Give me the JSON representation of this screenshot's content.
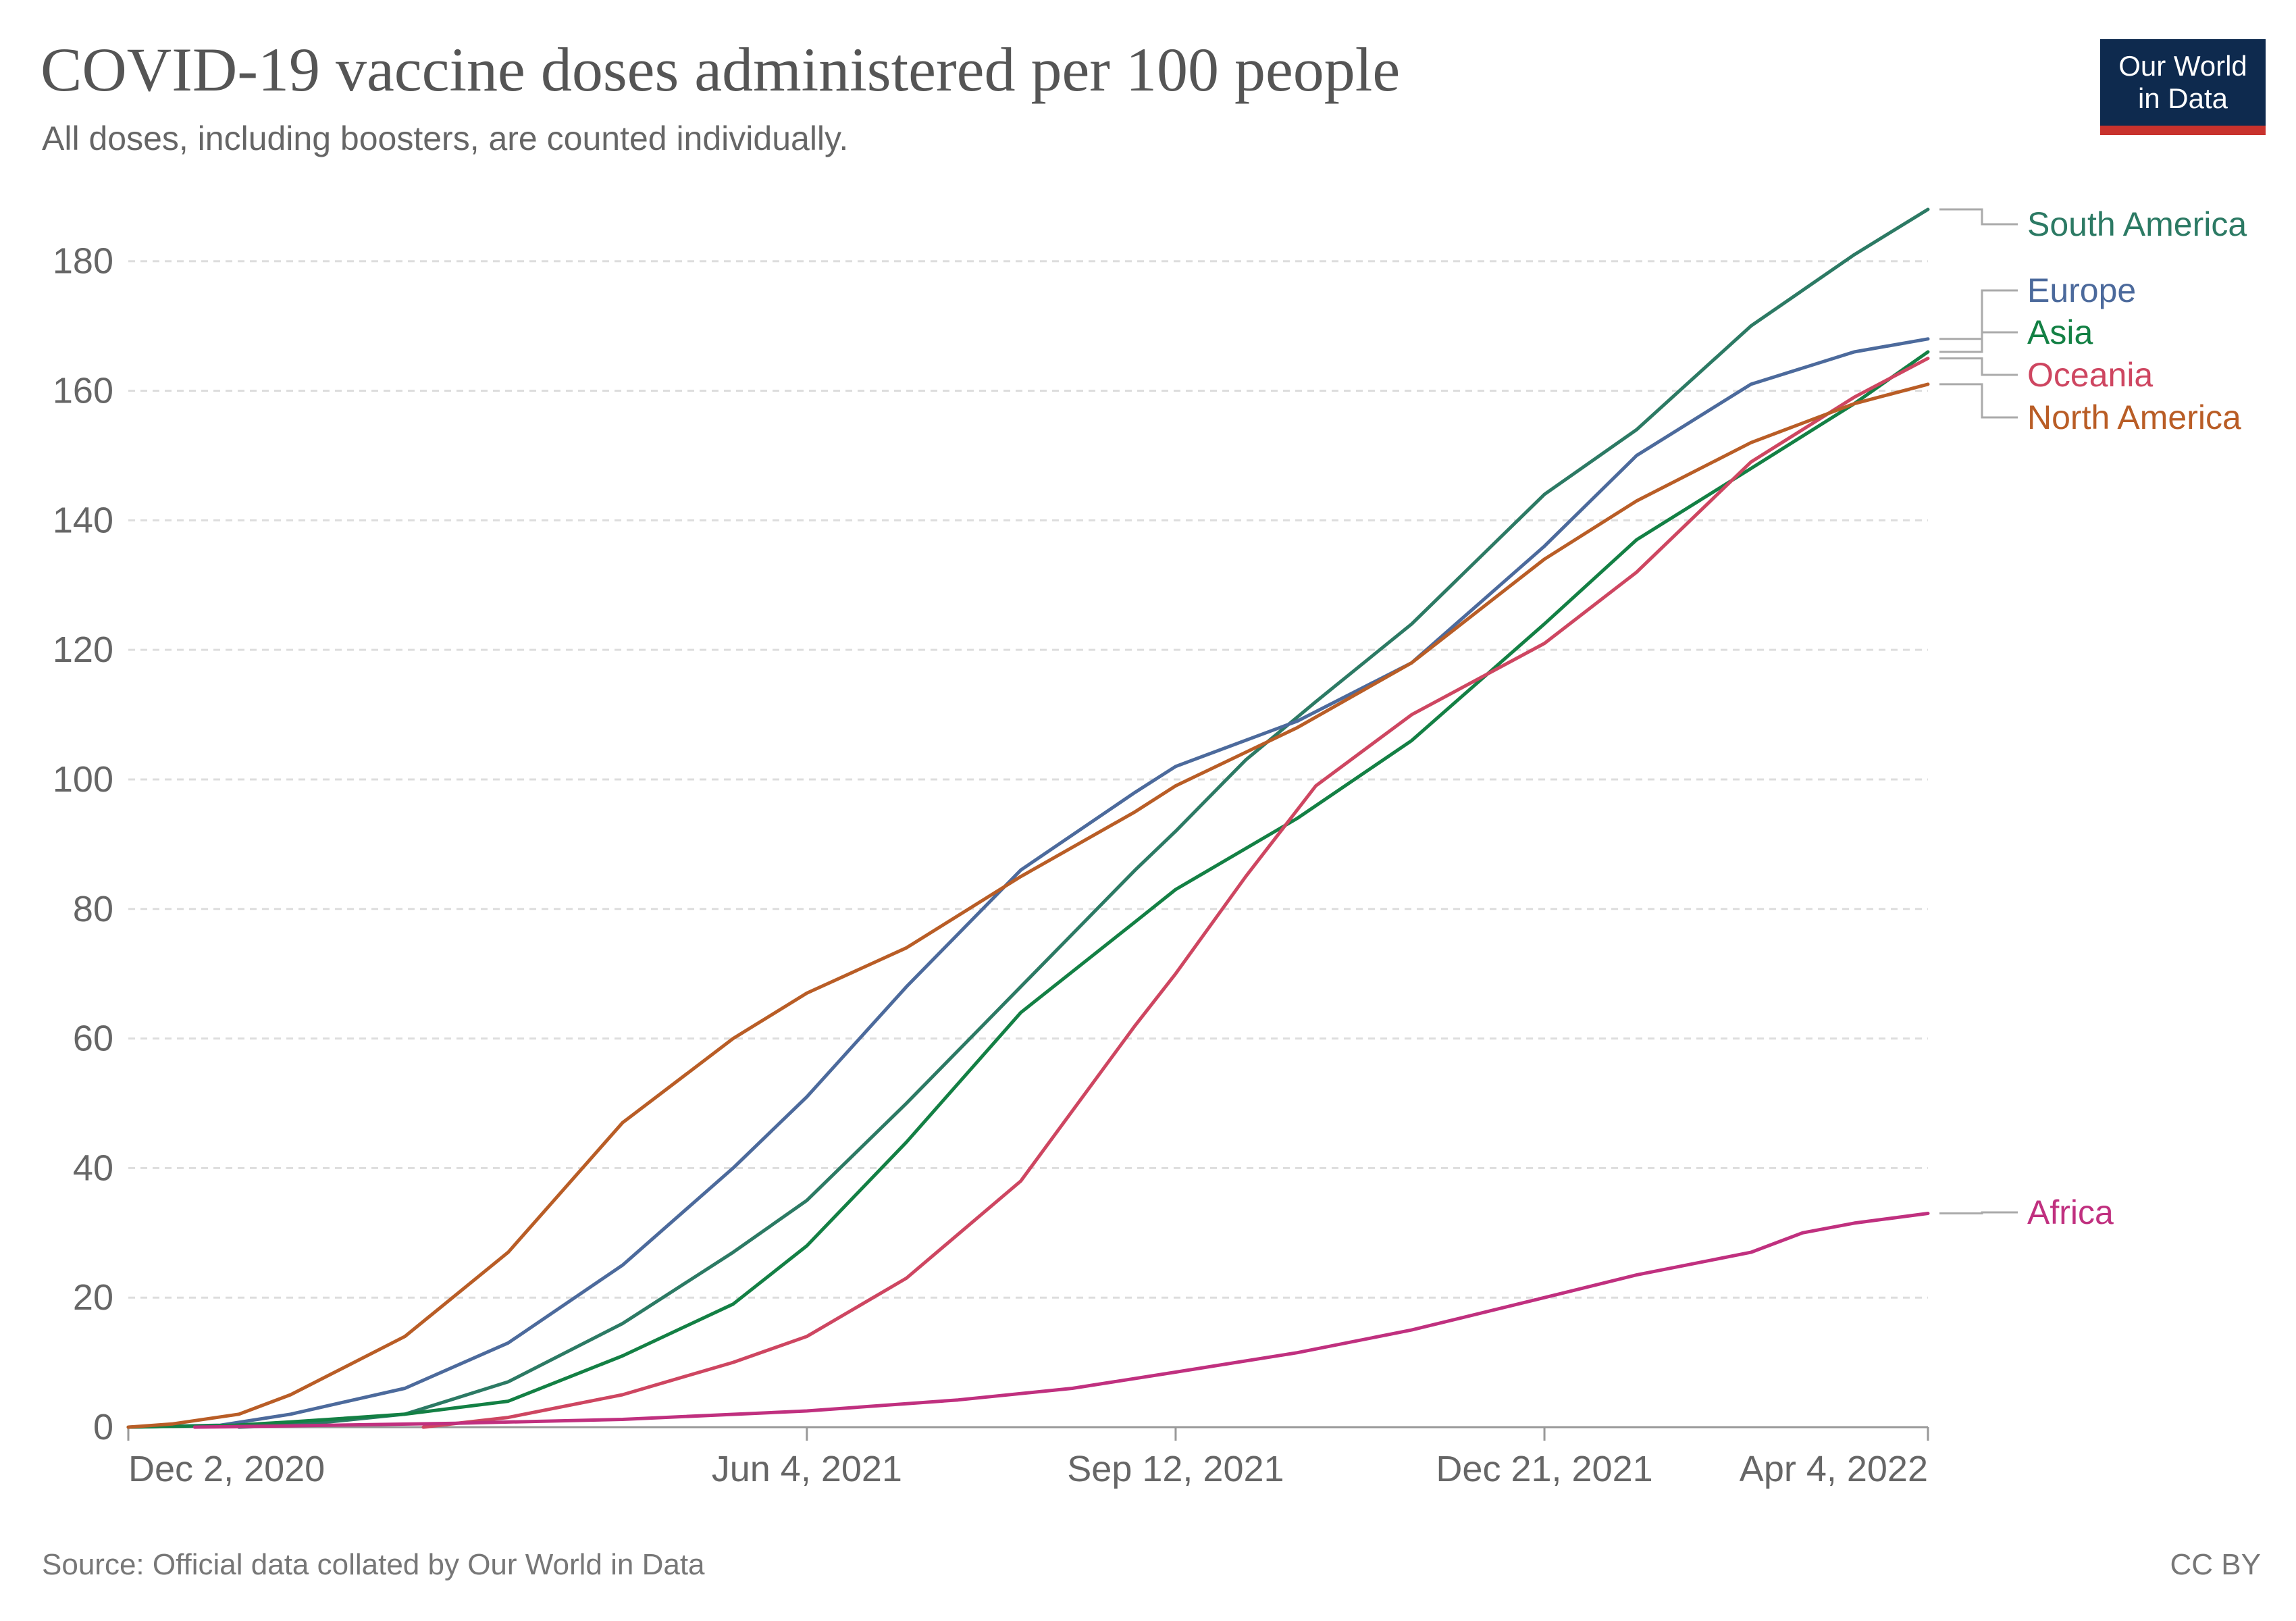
{
  "header": {
    "title": "COVID-19 vaccine doses administered per 100 people",
    "subtitle": "All doses, including boosters, are counted individually."
  },
  "logo": {
    "line1": "Our World",
    "line2": "in Data"
  },
  "footer": {
    "source": "Source: Official data collated by Our World in Data",
    "license": "CC BY"
  },
  "chart_data": {
    "type": "line",
    "title": "COVID-19 vaccine doses administered per 100 people",
    "subtitle": "All doses, including boosters, are counted individually.",
    "xlabel": "",
    "ylabel": "",
    "x_axis": {
      "type": "date",
      "range": [
        "2020-12-02",
        "2022-04-04"
      ],
      "ticks": [
        {
          "date": "2020-12-02",
          "label": "Dec 2, 2020"
        },
        {
          "date": "2021-06-04",
          "label": "Jun 4, 2021"
        },
        {
          "date": "2021-09-12",
          "label": "Sep 12, 2021"
        },
        {
          "date": "2021-12-21",
          "label": "Dec 21, 2021"
        },
        {
          "date": "2022-04-04",
          "label": "Apr 4, 2022"
        }
      ]
    },
    "y_axis": {
      "range": [
        0,
        188
      ],
      "ticks": [
        0,
        20,
        40,
        60,
        80,
        100,
        120,
        140,
        160,
        180
      ],
      "grid": true
    },
    "legend": "right-side labels at line ends",
    "series": [
      {
        "name": "South America",
        "color": "#2c7a64",
        "points": [
          {
            "x": "2021-01-01",
            "y": 0
          },
          {
            "x": "2021-01-20",
            "y": 0.5
          },
          {
            "x": "2021-02-15",
            "y": 2
          },
          {
            "x": "2021-03-15",
            "y": 7
          },
          {
            "x": "2021-04-15",
            "y": 16
          },
          {
            "x": "2021-05-15",
            "y": 27
          },
          {
            "x": "2021-06-04",
            "y": 35
          },
          {
            "x": "2021-07-01",
            "y": 50
          },
          {
            "x": "2021-08-01",
            "y": 68
          },
          {
            "x": "2021-09-01",
            "y": 86
          },
          {
            "x": "2021-09-12",
            "y": 92
          },
          {
            "x": "2021-10-01",
            "y": 103
          },
          {
            "x": "2021-10-20",
            "y": 112
          },
          {
            "x": "2021-11-15",
            "y": 124
          },
          {
            "x": "2021-12-21",
            "y": 144
          },
          {
            "x": "2022-01-15",
            "y": 154
          },
          {
            "x": "2022-02-15",
            "y": 170
          },
          {
            "x": "2022-03-15",
            "y": 181
          },
          {
            "x": "2022-04-04",
            "y": 188
          }
        ]
      },
      {
        "name": "Europe",
        "color": "#4c6a9c",
        "points": [
          {
            "x": "2020-12-02",
            "y": 0
          },
          {
            "x": "2020-12-27",
            "y": 0.3
          },
          {
            "x": "2021-01-15",
            "y": 2
          },
          {
            "x": "2021-02-15",
            "y": 6
          },
          {
            "x": "2021-03-15",
            "y": 13
          },
          {
            "x": "2021-04-15",
            "y": 25
          },
          {
            "x": "2021-05-15",
            "y": 40
          },
          {
            "x": "2021-06-04",
            "y": 51
          },
          {
            "x": "2021-07-01",
            "y": 68
          },
          {
            "x": "2021-08-01",
            "y": 86
          },
          {
            "x": "2021-09-01",
            "y": 98
          },
          {
            "x": "2021-09-12",
            "y": 102
          },
          {
            "x": "2021-10-15",
            "y": 109
          },
          {
            "x": "2021-11-15",
            "y": 118
          },
          {
            "x": "2021-12-21",
            "y": 136
          },
          {
            "x": "2022-01-15",
            "y": 150
          },
          {
            "x": "2022-02-15",
            "y": 161
          },
          {
            "x": "2022-03-15",
            "y": 166
          },
          {
            "x": "2022-04-04",
            "y": 168
          }
        ]
      },
      {
        "name": "Asia",
        "color": "#138044",
        "points": [
          {
            "x": "2020-12-02",
            "y": 0
          },
          {
            "x": "2020-12-31",
            "y": 0.3
          },
          {
            "x": "2021-01-15",
            "y": 0.8
          },
          {
            "x": "2021-02-15",
            "y": 2
          },
          {
            "x": "2021-03-15",
            "y": 4
          },
          {
            "x": "2021-04-15",
            "y": 11
          },
          {
            "x": "2021-05-15",
            "y": 19
          },
          {
            "x": "2021-06-04",
            "y": 28
          },
          {
            "x": "2021-07-01",
            "y": 44
          },
          {
            "x": "2021-08-01",
            "y": 64
          },
          {
            "x": "2021-09-01",
            "y": 78
          },
          {
            "x": "2021-09-12",
            "y": 83
          },
          {
            "x": "2021-10-15",
            "y": 94
          },
          {
            "x": "2021-11-15",
            "y": 106
          },
          {
            "x": "2021-12-21",
            "y": 124
          },
          {
            "x": "2022-01-15",
            "y": 137
          },
          {
            "x": "2022-02-15",
            "y": 148
          },
          {
            "x": "2022-03-15",
            "y": 158
          },
          {
            "x": "2022-04-04",
            "y": 166
          }
        ]
      },
      {
        "name": "Oceania",
        "color": "#ce4661",
        "points": [
          {
            "x": "2021-02-20",
            "y": 0
          },
          {
            "x": "2021-03-15",
            "y": 1.5
          },
          {
            "x": "2021-04-15",
            "y": 5
          },
          {
            "x": "2021-05-15",
            "y": 10
          },
          {
            "x": "2021-06-04",
            "y": 14
          },
          {
            "x": "2021-07-01",
            "y": 23
          },
          {
            "x": "2021-08-01",
            "y": 38
          },
          {
            "x": "2021-09-01",
            "y": 62
          },
          {
            "x": "2021-09-12",
            "y": 70
          },
          {
            "x": "2021-10-01",
            "y": 85
          },
          {
            "x": "2021-10-20",
            "y": 99
          },
          {
            "x": "2021-11-15",
            "y": 110
          },
          {
            "x": "2021-12-21",
            "y": 121
          },
          {
            "x": "2022-01-15",
            "y": 132
          },
          {
            "x": "2022-02-15",
            "y": 149
          },
          {
            "x": "2022-03-15",
            "y": 159
          },
          {
            "x": "2022-04-04",
            "y": 165
          }
        ]
      },
      {
        "name": "North America",
        "color": "#b95d26",
        "points": [
          {
            "x": "2020-12-02",
            "y": 0
          },
          {
            "x": "2020-12-14",
            "y": 0.5
          },
          {
            "x": "2021-01-01",
            "y": 2
          },
          {
            "x": "2021-01-15",
            "y": 5
          },
          {
            "x": "2021-02-15",
            "y": 14
          },
          {
            "x": "2021-03-15",
            "y": 27
          },
          {
            "x": "2021-04-15",
            "y": 47
          },
          {
            "x": "2021-05-15",
            "y": 60
          },
          {
            "x": "2021-06-04",
            "y": 67
          },
          {
            "x": "2021-07-01",
            "y": 74
          },
          {
            "x": "2021-08-01",
            "y": 85
          },
          {
            "x": "2021-09-01",
            "y": 95
          },
          {
            "x": "2021-09-12",
            "y": 99
          },
          {
            "x": "2021-10-15",
            "y": 108
          },
          {
            "x": "2021-11-15",
            "y": 118
          },
          {
            "x": "2021-12-21",
            "y": 134
          },
          {
            "x": "2022-01-15",
            "y": 143
          },
          {
            "x": "2022-02-15",
            "y": 152
          },
          {
            "x": "2022-03-15",
            "y": 158
          },
          {
            "x": "2022-04-04",
            "y": 161
          }
        ]
      },
      {
        "name": "Africa",
        "color": "#c0307f",
        "points": [
          {
            "x": "2020-12-20",
            "y": 0
          },
          {
            "x": "2021-01-15",
            "y": 0.2
          },
          {
            "x": "2021-03-01",
            "y": 0.6
          },
          {
            "x": "2021-04-15",
            "y": 1.2
          },
          {
            "x": "2021-06-04",
            "y": 2.5
          },
          {
            "x": "2021-07-15",
            "y": 4.2
          },
          {
            "x": "2021-08-15",
            "y": 6
          },
          {
            "x": "2021-09-12",
            "y": 8.5
          },
          {
            "x": "2021-10-15",
            "y": 11.5
          },
          {
            "x": "2021-11-15",
            "y": 15
          },
          {
            "x": "2021-12-21",
            "y": 20
          },
          {
            "x": "2022-01-15",
            "y": 23.5
          },
          {
            "x": "2022-02-15",
            "y": 27
          },
          {
            "x": "2022-03-01",
            "y": 30
          },
          {
            "x": "2022-03-15",
            "y": 31.5
          },
          {
            "x": "2022-04-04",
            "y": 33
          }
        ]
      }
    ]
  }
}
